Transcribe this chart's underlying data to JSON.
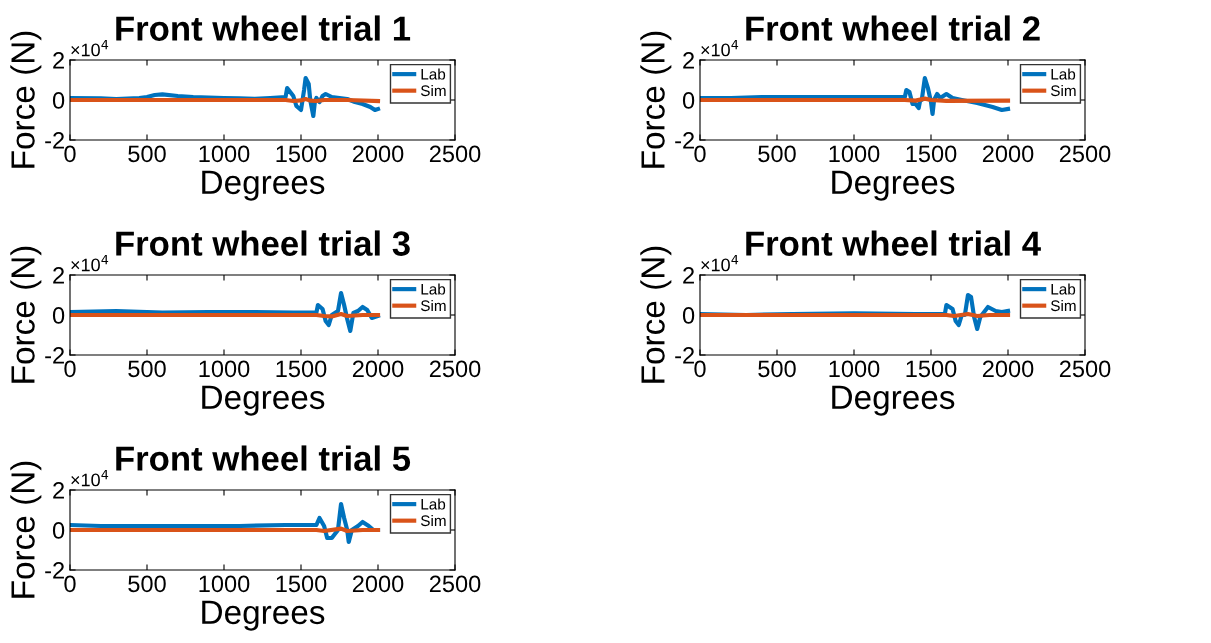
{
  "chart_data": [
    {
      "type": "line",
      "title": "Front wheel trial 1",
      "xlabel": "Degrees",
      "ylabel": "Force (N)",
      "annotations": [
        "×10$^{4}$"
      ],
      "xlim": [
        0,
        2500
      ],
      "xticks": [
        0,
        500,
        1000,
        1500,
        2000,
        2500
      ],
      "ylim": [
        -2,
        2
      ],
      "yticks": [
        -2,
        0,
        2
      ],
      "legend": "top right",
      "series": [
        {
          "name": "Lab",
          "color": "#0072bd",
          "x": [
            0,
            200,
            300,
            450,
            500,
            550,
            600,
            700,
            800,
            1000,
            1100,
            1200,
            1300,
            1400,
            1410,
            1450,
            1470,
            1500,
            1510,
            1520,
            1530,
            1550,
            1560,
            1580,
            1590,
            1600,
            1620,
            1640,
            1660,
            1700,
            1800,
            1850,
            1900,
            1950,
            1980,
            2000
          ],
          "values": [
            0.1,
            0.08,
            0.05,
            0.1,
            0.15,
            0.25,
            0.28,
            0.2,
            0.15,
            0.1,
            0.08,
            0.06,
            0.1,
            0.15,
            0.6,
            0.2,
            -0.3,
            -0.5,
            0,
            0.5,
            1.1,
            0.8,
            0,
            -0.8,
            -0.1,
            0.1,
            -0.1,
            0.2,
            0.3,
            0.15,
            0.05,
            -0.1,
            -0.2,
            -0.35,
            -0.5,
            -0.45
          ]
        },
        {
          "name": "Sim",
          "color": "#d95319",
          "x": [
            0,
            1400,
            1450,
            1500,
            1530,
            1560,
            1600,
            1650,
            1800,
            2000
          ],
          "values": [
            0,
            0,
            -0.05,
            -0.02,
            0.05,
            -0.03,
            -0.05,
            0,
            0,
            -0.05
          ]
        }
      ]
    },
    {
      "type": "line",
      "title": "Front wheel trial 2",
      "xlabel": "Degrees",
      "ylabel": "Force (N)",
      "annotations": [
        "×10$^{4}$"
      ],
      "xlim": [
        0,
        2500
      ],
      "xticks": [
        0,
        500,
        1000,
        1500,
        2000,
        2500
      ],
      "ylim": [
        -2,
        2
      ],
      "yticks": [
        -2,
        0,
        2
      ],
      "legend": "top right",
      "series": [
        {
          "name": "Lab",
          "color": "#0072bd",
          "x": [
            0,
            200,
            400,
            600,
            800,
            1000,
            1200,
            1330,
            1340,
            1360,
            1380,
            1400,
            1420,
            1430,
            1440,
            1460,
            1480,
            1500,
            1510,
            1520,
            1540,
            1560,
            1600,
            1640,
            1700,
            1800,
            1850,
            1900,
            1960,
            2000
          ],
          "values": [
            0.1,
            0.1,
            0.15,
            0.15,
            0.15,
            0.15,
            0.15,
            0.15,
            0.5,
            0.4,
            -0.2,
            -0.2,
            -0.4,
            0,
            0,
            1.1,
            0.6,
            -0.1,
            -0.7,
            0,
            0.3,
            0.1,
            0.3,
            0.1,
            0,
            -0.15,
            -0.25,
            -0.35,
            -0.5,
            -0.45
          ]
        },
        {
          "name": "Sim",
          "color": "#d95319",
          "x": [
            0,
            1330,
            1400,
            1460,
            1500,
            1600,
            2000
          ],
          "values": [
            0,
            0,
            -0.03,
            0.07,
            0,
            -0.04,
            -0.03
          ]
        }
      ]
    },
    {
      "type": "line",
      "title": "Front wheel trial 3",
      "xlabel": "Degrees",
      "ylabel": "Force (N)",
      "annotations": [
        "×10$^{4}$"
      ],
      "xlim": [
        0,
        2500
      ],
      "xticks": [
        0,
        500,
        1000,
        1500,
        2000,
        2500
      ],
      "ylim": [
        -2,
        2
      ],
      "yticks": [
        -2,
        0,
        2
      ],
      "legend": "top right",
      "series": [
        {
          "name": "Lab",
          "color": "#0072bd",
          "x": [
            0,
            300,
            600,
            900,
            1200,
            1450,
            1600,
            1610,
            1640,
            1660,
            1680,
            1700,
            1740,
            1760,
            1780,
            1800,
            1820,
            1840,
            1870,
            1900,
            1930,
            1960,
            2000
          ],
          "values": [
            0.15,
            0.2,
            0.12,
            0.15,
            0.15,
            0.12,
            0.12,
            0.5,
            0.3,
            -0.3,
            -0.5,
            0,
            0.2,
            1.1,
            0.5,
            -0.2,
            -0.8,
            0.1,
            0.2,
            0.4,
            0.25,
            -0.15,
            -0.05
          ]
        },
        {
          "name": "Sim",
          "color": "#d95319",
          "x": [
            0,
            1600,
            1650,
            1700,
            1760,
            1800,
            1900,
            2000
          ],
          "values": [
            0,
            0,
            -0.05,
            -0.07,
            0.05,
            -0.05,
            0,
            0
          ]
        }
      ]
    },
    {
      "type": "line",
      "title": "Front wheel trial 4",
      "xlabel": "Degrees",
      "ylabel": "Force (N)",
      "annotations": [
        "×10$^{4}$"
      ],
      "xlim": [
        0,
        2500
      ],
      "xticks": [
        0,
        500,
        1000,
        1500,
        2000,
        2500
      ],
      "ylim": [
        -2,
        2
      ],
      "yticks": [
        -2,
        0,
        2
      ],
      "legend": "top right",
      "series": [
        {
          "name": "Lab",
          "color": "#0072bd",
          "x": [
            0,
            300,
            600,
            1000,
            1400,
            1590,
            1600,
            1640,
            1660,
            1680,
            1700,
            1720,
            1740,
            1760,
            1780,
            1800,
            1820,
            1870,
            1920,
            1960,
            2000
          ],
          "values": [
            0.05,
            0,
            0.05,
            0.08,
            0.05,
            0.05,
            0.5,
            0.3,
            -0.3,
            -0.5,
            0,
            0,
            1.0,
            0.9,
            -0.1,
            -0.7,
            -0.1,
            0.4,
            0.2,
            0.15,
            0.2
          ]
        },
        {
          "name": "Sim",
          "color": "#d95319",
          "x": [
            0,
            1600,
            1650,
            1740,
            1800,
            1880,
            2000
          ],
          "values": [
            0,
            0,
            -0.05,
            0.05,
            -0.05,
            0,
            0
          ]
        }
      ]
    },
    {
      "type": "line",
      "title": "Front wheel trial 5",
      "xlabel": "Degrees",
      "ylabel": "Force (N)",
      "annotations": [
        "×10$^{4}$"
      ],
      "xlim": [
        0,
        2500
      ],
      "xticks": [
        0,
        500,
        1000,
        1500,
        2000,
        2500
      ],
      "ylim": [
        -2,
        2
      ],
      "yticks": [
        -2,
        0,
        2
      ],
      "legend": "top right",
      "series": [
        {
          "name": "Lab",
          "color": "#0072bd",
          "x": [
            0,
            200,
            500,
            800,
            1100,
            1400,
            1600,
            1620,
            1650,
            1670,
            1700,
            1740,
            1760,
            1780,
            1800,
            1810,
            1830,
            1870,
            1900,
            1940,
            1970,
            2000
          ],
          "values": [
            0.25,
            0.2,
            0.2,
            0.2,
            0.2,
            0.25,
            0.25,
            0.6,
            0.2,
            -0.4,
            -0.4,
            0,
            1.3,
            0.6,
            0,
            -0.6,
            0,
            0.2,
            0.4,
            0.2,
            0,
            0
          ]
        },
        {
          "name": "Sim",
          "color": "#d95319",
          "x": [
            0,
            1600,
            1650,
            1760,
            1800,
            1900,
            2000
          ],
          "values": [
            0,
            0,
            -0.05,
            0.07,
            -0.05,
            0,
            0
          ]
        }
      ]
    }
  ]
}
